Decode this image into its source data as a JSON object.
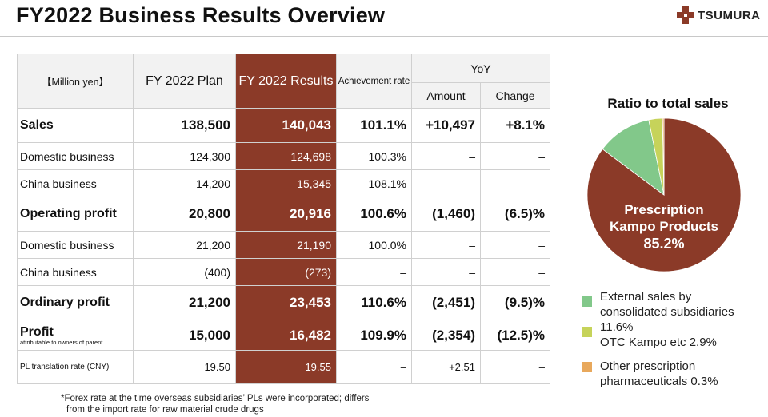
{
  "header": {
    "title": "FY2022 Business Results Overview",
    "logo_text": "TSUMURA"
  },
  "table": {
    "unit_label": "【Million yen】",
    "col_plan": "FY 2022 Plan",
    "col_results": "FY 2022 Results",
    "col_achievement": "Achievement rate",
    "col_yoy": "YoY",
    "col_amount": "Amount",
    "col_change": "Change",
    "rows": [
      {
        "label": "Sales",
        "plan": "138,500",
        "results": "140,043",
        "achievement": "101.1%",
        "amount": "+10,497",
        "change": "+8.1%"
      },
      {
        "label": "Domestic business",
        "plan": "124,300",
        "results": "124,698",
        "achievement": "100.3%",
        "amount": "–",
        "change": "–"
      },
      {
        "label": "China business",
        "plan": "14,200",
        "results": "15,345",
        "achievement": "108.1%",
        "amount": "–",
        "change": "–"
      },
      {
        "label": "Operating profit",
        "plan": "20,800",
        "results": "20,916",
        "achievement": "100.6%",
        "amount": "(1,460)",
        "change": "(6.5)%"
      },
      {
        "label": "Domestic business",
        "plan": "21,200",
        "results": "21,190",
        "achievement": "100.0%",
        "amount": "–",
        "change": "–"
      },
      {
        "label": "China business",
        "plan": "(400)",
        "results": "(273)",
        "achievement": "–",
        "amount": "–",
        "change": "–"
      },
      {
        "label": "Ordinary profit",
        "plan": "21,200",
        "results": "23,453",
        "achievement": "110.6%",
        "amount": "(2,451)",
        "change": "(9.5)%"
      },
      {
        "label": "Profit",
        "sublabel": "attributable to owners of parent",
        "plan": "15,000",
        "results": "16,482",
        "achievement": "109.9%",
        "amount": "(2,354)",
        "change": "(12.5)%"
      },
      {
        "label": "PL translation rate (CNY)",
        "plan": "19.50",
        "results": "19.55",
        "achievement": "–",
        "amount": "+2.51",
        "change": "–"
      }
    ]
  },
  "footnote": {
    "line1": "*Forex rate at the time overseas subsidiaries’ PLs were incorporated; differs",
    "line2": "from the import rate for raw material crude drugs"
  },
  "ratio_chart": {
    "title": "Ratio to total sales",
    "main_label_line1": "Prescription",
    "main_label_line2": "Kampo Products",
    "main_label_value": "85.2%",
    "legend": [
      {
        "line1": "External sales by",
        "line2": "consolidated subsidiaries",
        "line3": "11.6%"
      },
      {
        "line1": "OTC Kampo etc   2.9%"
      },
      {
        "line1": "Other prescription",
        "line2": "pharmaceuticals 0.3%"
      }
    ]
  },
  "chart_data": {
    "type": "pie",
    "title": "Ratio to total sales",
    "labels": [
      "Prescription Kampo Products",
      "External sales by consolidated subsidiaries",
      "OTC Kampo etc",
      "Other prescription pharmaceuticals"
    ],
    "values": [
      85.2,
      11.6,
      2.9,
      0.3
    ],
    "colors": [
      "#8b3a28",
      "#82c88a",
      "#c6d35a",
      "#e8a85c"
    ],
    "legend_position": "bottom"
  }
}
